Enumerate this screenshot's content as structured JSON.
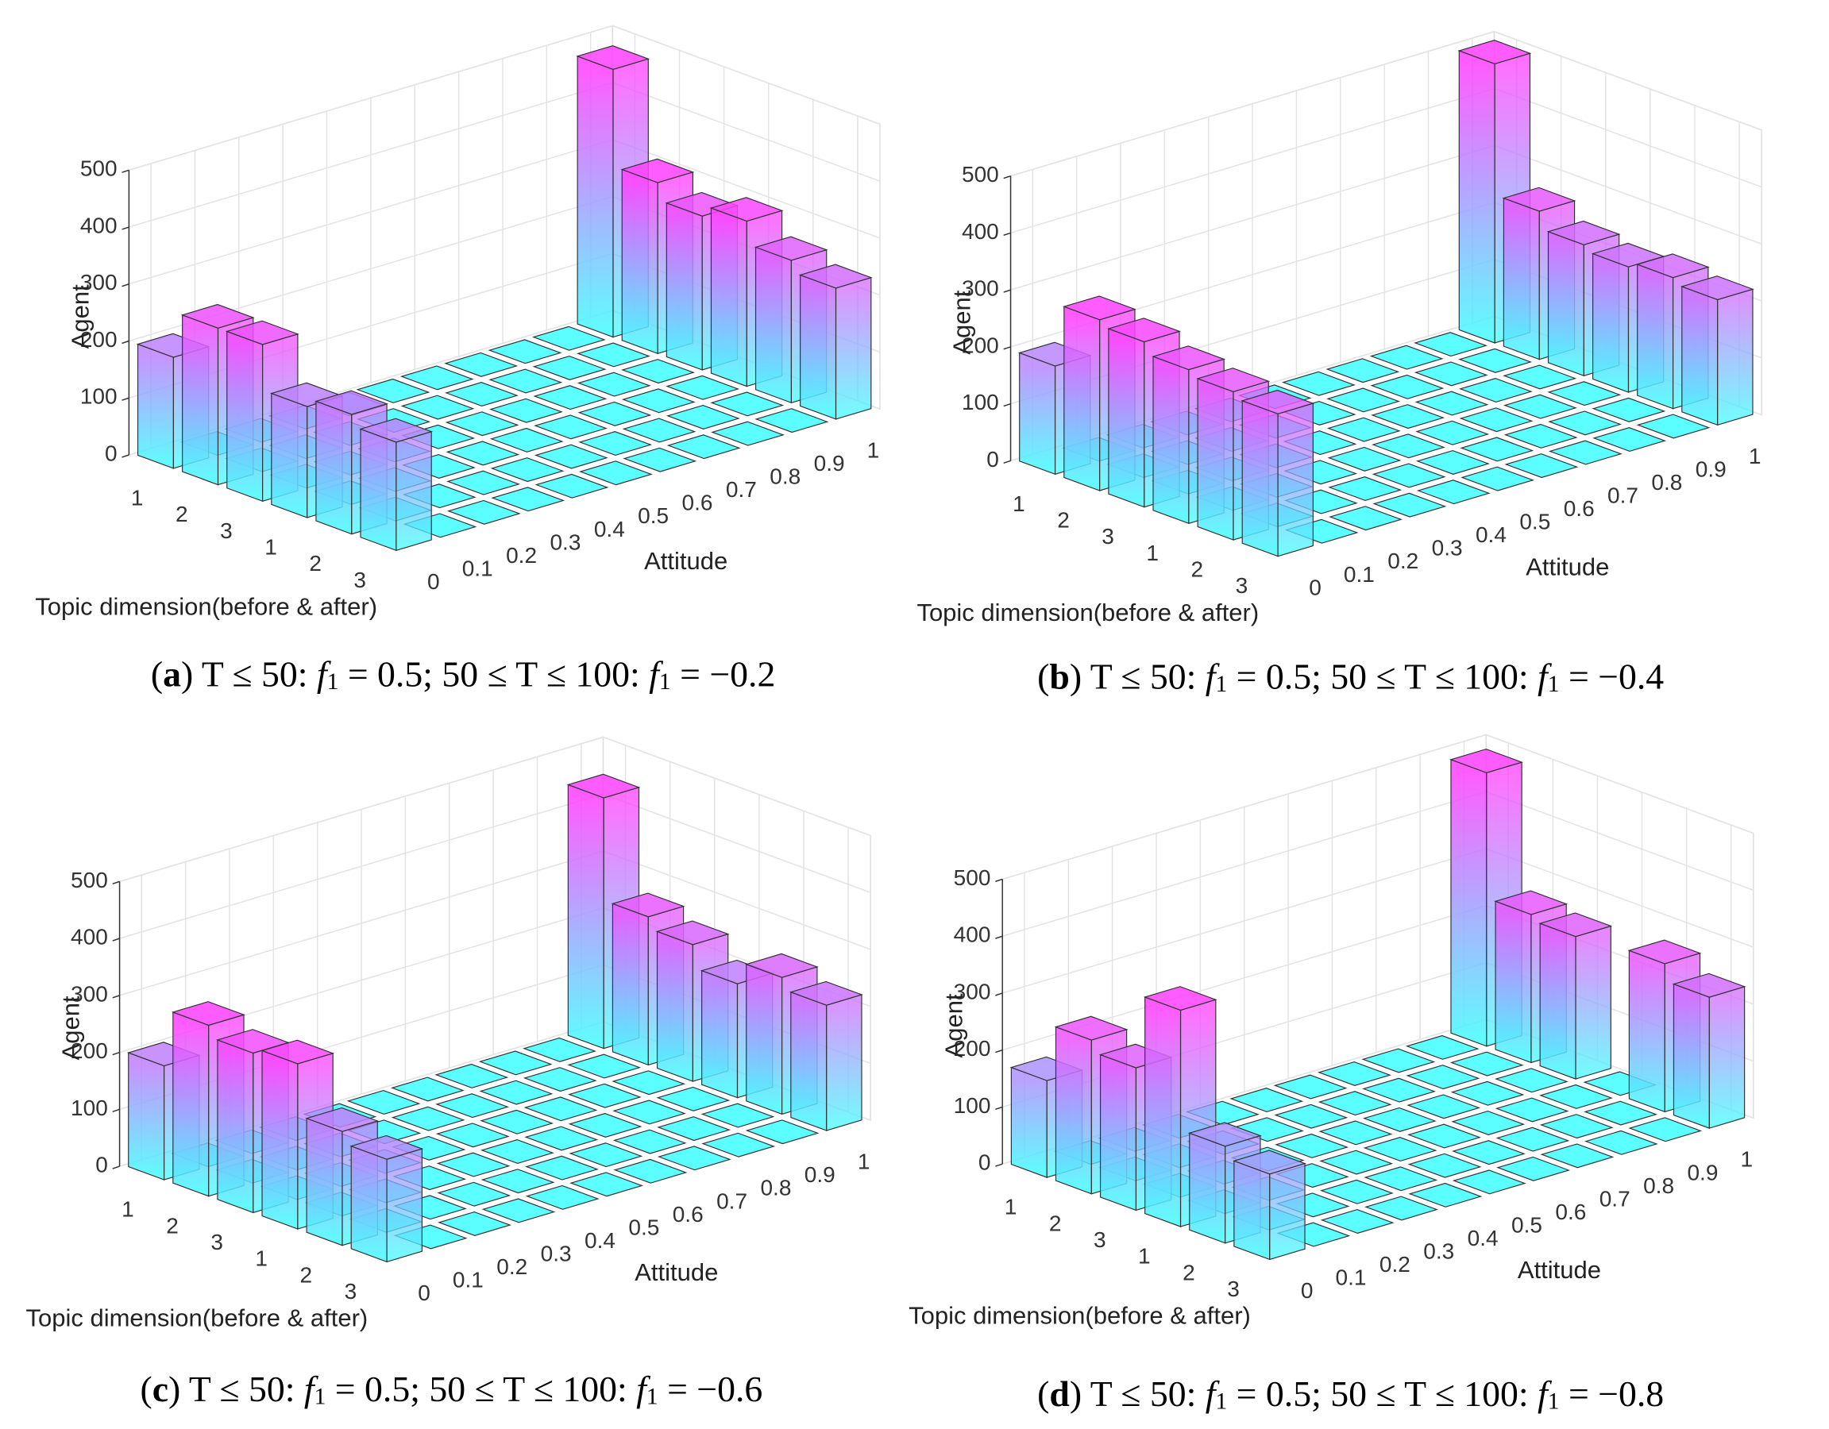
{
  "chart_data": [
    {
      "type": "bar3d",
      "zlabel": "Agent",
      "xlabel": "Topic dimension(before & after)",
      "ylabel": "Attitude",
      "caption": [
        "(",
        "a",
        ") T ≤ 50: ",
        "f",
        "1",
        " = 0.5; 50 ≤ T ≤ 100: ",
        "f",
        "1",
        " = −0.2"
      ],
      "topic_categories": [
        "1",
        "2",
        "3",
        "1",
        "2",
        "3"
      ],
      "attitude_categories": [
        "0",
        "0.1",
        "0.2",
        "0.3",
        "0.4",
        "0.5",
        "0.6",
        "0.7",
        "0.8",
        "0.9",
        "1"
      ],
      "values": [
        [
          195,
          0,
          0,
          0,
          0,
          0,
          0,
          0,
          0,
          0,
          470
        ],
        [
          275,
          0,
          0,
          0,
          0,
          0,
          0,
          0,
          0,
          0,
          300
        ],
        [
          275,
          0,
          0,
          0,
          0,
          0,
          0,
          0,
          0,
          0,
          270
        ],
        [
          195,
          0,
          0,
          0,
          0,
          0,
          0,
          0,
          0,
          0,
          290
        ],
        [
          210,
          0,
          0,
          0,
          0,
          0,
          0,
          0,
          0,
          0,
          250
        ],
        [
          190,
          0,
          0,
          0,
          0,
          0,
          0,
          0,
          0,
          0,
          230
        ]
      ],
      "zlim": [
        0,
        500
      ],
      "zticks": [
        0,
        100,
        200,
        300,
        400,
        500
      ],
      "grid": true,
      "colormap": [
        "#40ffff",
        "#ff40ff"
      ]
    },
    {
      "type": "bar3d",
      "zlabel": "Agent",
      "xlabel": "Topic dimension(before & after)",
      "ylabel": "Attitude",
      "caption": [
        "(",
        "b",
        ") T ≤ 50: ",
        "f",
        "1",
        " = 0.5; 50 ≤ T ≤ 100: ",
        "f",
        "1",
        " = −0.4"
      ],
      "topic_categories": [
        "1",
        "2",
        "3",
        "1",
        "2",
        "3"
      ],
      "attitude_categories": [
        "0",
        "0.1",
        "0.2",
        "0.3",
        "0.4",
        "0.5",
        "0.6",
        "0.7",
        "0.8",
        "0.9",
        "1"
      ],
      "values": [
        [
          190,
          0,
          0,
          0,
          0,
          0,
          0,
          0,
          0,
          0,
          490
        ],
        [
          300,
          0,
          0,
          0,
          0,
          0,
          0,
          0,
          0,
          0,
          260
        ],
        [
          290,
          0,
          0,
          0,
          0,
          0,
          0,
          0,
          0,
          0,
          230
        ],
        [
          270,
          0,
          0,
          0,
          0,
          0,
          0,
          0,
          0,
          0,
          220
        ],
        [
          260,
          0,
          0,
          0,
          0,
          0,
          0,
          0,
          0,
          0,
          230
        ],
        [
          250,
          0,
          0,
          0,
          0,
          0,
          0,
          0,
          0,
          0,
          220
        ]
      ],
      "zlim": [
        0,
        500
      ],
      "zticks": [
        0,
        100,
        200,
        300,
        400,
        500
      ],
      "grid": true,
      "colormap": [
        "#40ffff",
        "#ff40ff"
      ]
    },
    {
      "type": "bar3d",
      "zlabel": "Agent",
      "xlabel": "Topic dimension(before & after)",
      "ylabel": "Attitude",
      "caption": [
        "(",
        "c",
        ") T ≤ 50: ",
        "f",
        "1",
        " = 0.5; 50 ≤ T ≤ 100: ",
        "f",
        "1",
        " = −0.6"
      ],
      "topic_categories": [
        "1",
        "2",
        "3",
        "1",
        "2",
        "3"
      ],
      "attitude_categories": [
        "0",
        "0.1",
        "0.2",
        "0.3",
        "0.4",
        "0.5",
        "0.6",
        "0.7",
        "0.8",
        "0.9",
        "1"
      ],
      "values": [
        [
          200,
          0,
          0,
          0,
          0,
          0,
          0,
          0,
          0,
          0,
          440
        ],
        [
          300,
          0,
          0,
          0,
          0,
          0,
          0,
          0,
          0,
          0,
          260
        ],
        [
          280,
          0,
          0,
          0,
          0,
          0,
          0,
          0,
          0,
          0,
          240
        ],
        [
          290,
          0,
          0,
          0,
          0,
          0,
          0,
          0,
          0,
          0,
          200
        ],
        [
          200,
          0,
          0,
          0,
          0,
          0,
          0,
          0,
          0,
          0,
          240
        ],
        [
          180,
          0,
          0,
          0,
          0,
          0,
          0,
          0,
          0,
          0,
          220
        ]
      ],
      "zlim": [
        0,
        500
      ],
      "zticks": [
        0,
        100,
        200,
        300,
        400,
        500
      ],
      "grid": true,
      "colormap": [
        "#40ffff",
        "#ff40ff"
      ]
    },
    {
      "type": "bar3d",
      "zlabel": "Agent",
      "xlabel": "Topic dimension(before & after)",
      "ylabel": "Attitude",
      "caption": [
        "(",
        "d",
        ") T ≤ 50: ",
        "f",
        "1",
        " = 0.5; 50 ≤ T ≤ 100: ",
        "f",
        "1",
        " = −0.8"
      ],
      "topic_categories": [
        "1",
        "2",
        "3",
        "1",
        "2",
        "3"
      ],
      "attitude_categories": [
        "0",
        "0.1",
        "0.2",
        "0.3",
        "0.4",
        "0.5",
        "0.6",
        "0.7",
        "0.8",
        "0.9",
        "1"
      ],
      "values": [
        [
          170,
          0,
          0,
          0,
          0,
          0,
          0,
          0,
          0,
          0,
          480
        ],
        [
          270,
          0,
          0,
          0,
          0,
          0,
          0,
          0,
          0,
          0,
          260
        ],
        [
          250,
          0,
          0,
          0,
          0,
          0,
          0,
          0,
          0,
          0,
          250
        ],
        [
          380,
          0,
          0,
          0,
          0,
          0,
          0,
          0,
          0,
          0,
          0
        ],
        [
          170,
          0,
          0,
          0,
          0,
          0,
          0,
          0,
          0,
          0,
          260
        ],
        [
          150,
          0,
          0,
          0,
          0,
          0,
          0,
          0,
          0,
          0,
          230
        ]
      ],
      "zlim": [
        0,
        500
      ],
      "zticks": [
        0,
        100,
        200,
        300,
        400,
        500
      ],
      "grid": true,
      "colormap": [
        "#40ffff",
        "#ff40ff"
      ]
    }
  ]
}
